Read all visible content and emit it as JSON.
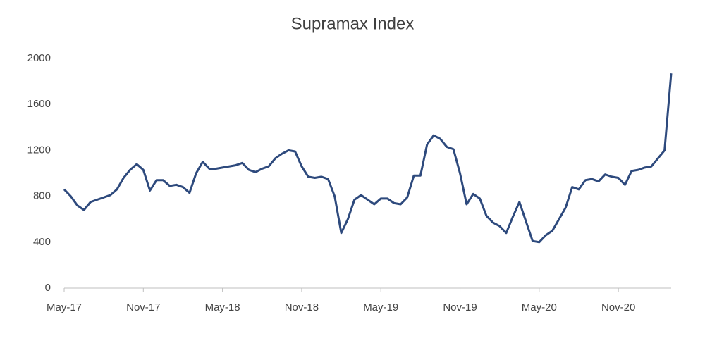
{
  "chart_data": {
    "type": "line",
    "title": "Supramax Index",
    "categories": [
      "May-17",
      null,
      null,
      null,
      null,
      null,
      null,
      null,
      null,
      null,
      null,
      null,
      "Nov-17",
      null,
      null,
      null,
      null,
      null,
      null,
      null,
      null,
      null,
      null,
      null,
      "May-18",
      null,
      null,
      null,
      null,
      null,
      null,
      null,
      null,
      null,
      null,
      null,
      "Nov-18",
      null,
      null,
      null,
      null,
      null,
      null,
      null,
      null,
      null,
      null,
      null,
      "May-19",
      null,
      null,
      null,
      null,
      null,
      null,
      null,
      null,
      null,
      null,
      null,
      "Nov-19",
      null,
      null,
      null,
      null,
      null,
      null,
      null,
      null,
      null,
      null,
      null,
      "May-20",
      null,
      null,
      null,
      null,
      null,
      null,
      null,
      null,
      null,
      null,
      null,
      "Nov-20",
      null,
      null,
      null,
      null,
      null,
      null,
      null,
      null
    ],
    "series": [
      {
        "name": "Supramax Index",
        "color": "#2e4a7d",
        "values": [
          860,
          800,
          720,
          680,
          750,
          770,
          790,
          810,
          860,
          960,
          1030,
          1080,
          1030,
          850,
          940,
          940,
          890,
          900,
          880,
          830,
          1000,
          1100,
          1040,
          1040,
          1050,
          1060,
          1070,
          1090,
          1030,
          1010,
          1040,
          1060,
          1130,
          1170,
          1200,
          1190,
          1060,
          970,
          960,
          970,
          950,
          800,
          480,
          600,
          770,
          810,
          770,
          730,
          780,
          780,
          740,
          730,
          790,
          980,
          980,
          1250,
          1330,
          1300,
          1230,
          1210,
          1000,
          730,
          820,
          780,
          630,
          570,
          540,
          480,
          620,
          750,
          580,
          410,
          400,
          460,
          500,
          600,
          700,
          880,
          860,
          940,
          950,
          930,
          990,
          970,
          960,
          900,
          1020,
          1030,
          1050,
          1060,
          1130,
          1200,
          1870
        ]
      }
    ],
    "ylim": [
      0,
      2000
    ],
    "yticks": [
      0,
      400,
      800,
      1200,
      1600,
      2000
    ],
    "grid": false
  }
}
